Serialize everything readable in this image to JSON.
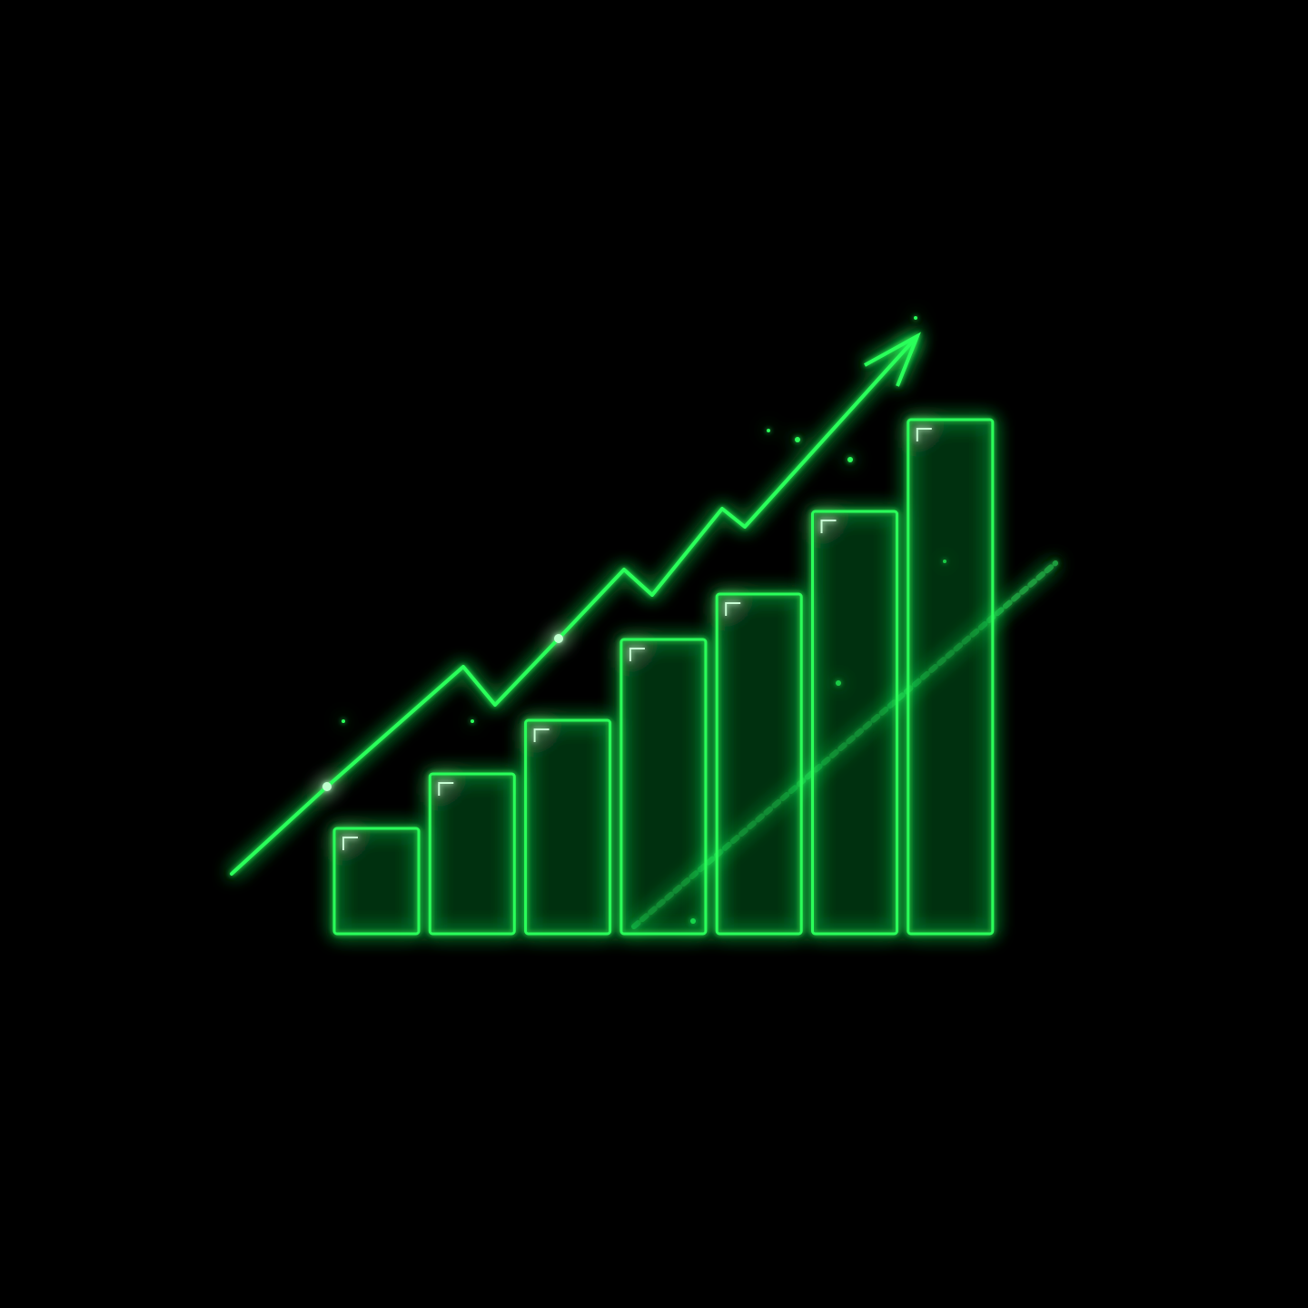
{
  "chart_data": {
    "type": "bar",
    "categories": [
      null,
      null,
      null,
      null,
      null,
      null,
      null
    ],
    "values": [
      116,
      176,
      235,
      324,
      374,
      465,
      566
    ],
    "color": "#2bff5a",
    "ylim": [
      0,
      600
    ]
  }
}
